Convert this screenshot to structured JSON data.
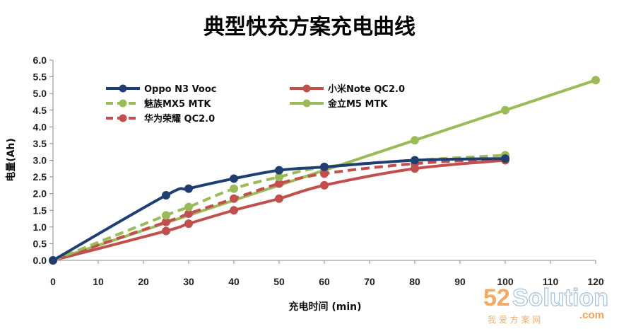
{
  "chart_data": {
    "type": "line",
    "title": "典型快充方案充电曲线",
    "xlabel": "充电时间 (min)",
    "ylabel": "电量(Ah)",
    "xlim": [
      0,
      120
    ],
    "ylim": [
      0,
      6.0
    ],
    "x_ticks": [
      "0",
      "10",
      "20",
      "30",
      "40",
      "50",
      "60",
      "70",
      "80",
      "90",
      "100",
      "110",
      "120"
    ],
    "y_ticks": [
      "0.0",
      "0.5",
      "1.0",
      "1.5",
      "2.0",
      "2.5",
      "3.0",
      "3.5",
      "4.0",
      "4.5",
      "5.0",
      "5.5",
      "6.0"
    ],
    "grid": false,
    "legend": "top-left",
    "series": [
      {
        "name": "Oppo N3 Vooc",
        "color": "#1f3f73",
        "dash": false,
        "points": [
          [
            0,
            0.0
          ],
          [
            25,
            1.95
          ],
          [
            30,
            2.15
          ],
          [
            40,
            2.45
          ],
          [
            50,
            2.7
          ],
          [
            60,
            2.8
          ],
          [
            80,
            3.0
          ],
          [
            100,
            3.05
          ]
        ]
      },
      {
        "name": "魅族MX5 MTK",
        "color": "#9bbb59",
        "dash": true,
        "points": [
          [
            0,
            0.0
          ],
          [
            25,
            1.35
          ],
          [
            30,
            1.6
          ],
          [
            40,
            2.15
          ],
          [
            50,
            2.5
          ],
          [
            60,
            2.8
          ],
          [
            80,
            3.0
          ],
          [
            100,
            3.15
          ]
        ]
      },
      {
        "name": "华为荣耀 QC2.0",
        "color": "#c0504d",
        "dash": true,
        "points": [
          [
            0,
            0.0
          ],
          [
            25,
            1.15
          ],
          [
            30,
            1.4
          ],
          [
            40,
            1.85
          ],
          [
            50,
            2.3
          ],
          [
            60,
            2.6
          ],
          [
            80,
            2.9
          ],
          [
            100,
            3.05
          ]
        ]
      },
      {
        "name": "小米Note QC2.0",
        "color": "#c0504d",
        "dash": false,
        "points": [
          [
            0,
            0.0
          ],
          [
            25,
            0.88
          ],
          [
            30,
            1.1
          ],
          [
            40,
            1.5
          ],
          [
            50,
            1.85
          ],
          [
            60,
            2.25
          ],
          [
            80,
            2.75
          ],
          [
            100,
            3.0
          ]
        ]
      },
      {
        "name": "金立M5 MTK",
        "color": "#9bbb59",
        "dash": false,
        "points": [
          [
            0,
            0.0
          ],
          [
            60,
            2.7
          ],
          [
            80,
            3.6
          ],
          [
            100,
            4.5
          ],
          [
            120,
            5.4
          ]
        ]
      }
    ]
  },
  "watermark": {
    "brand_digits": "52",
    "brand_word": "Solution",
    "domain": ".com",
    "subtitle": "我 爱 方 案 网"
  }
}
